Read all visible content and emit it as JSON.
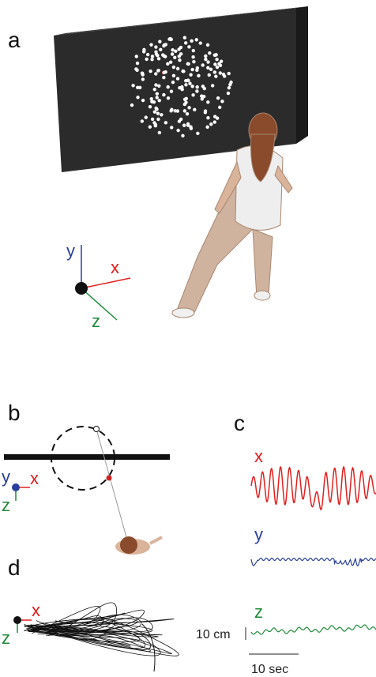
{
  "panels": {
    "a": {
      "label": "a",
      "axes": {
        "x": "x",
        "y": "y",
        "z": "z"
      }
    },
    "b": {
      "label": "b",
      "axes": {
        "x": "x",
        "y": "y",
        "z": "z"
      }
    },
    "c": {
      "label": "c",
      "traces": [
        "x",
        "y",
        "z"
      ],
      "scale_y": "10 cm",
      "scale_x": "10 sec"
    },
    "d": {
      "label": "d",
      "axes": {
        "x": "x",
        "z": "z"
      }
    }
  }
}
